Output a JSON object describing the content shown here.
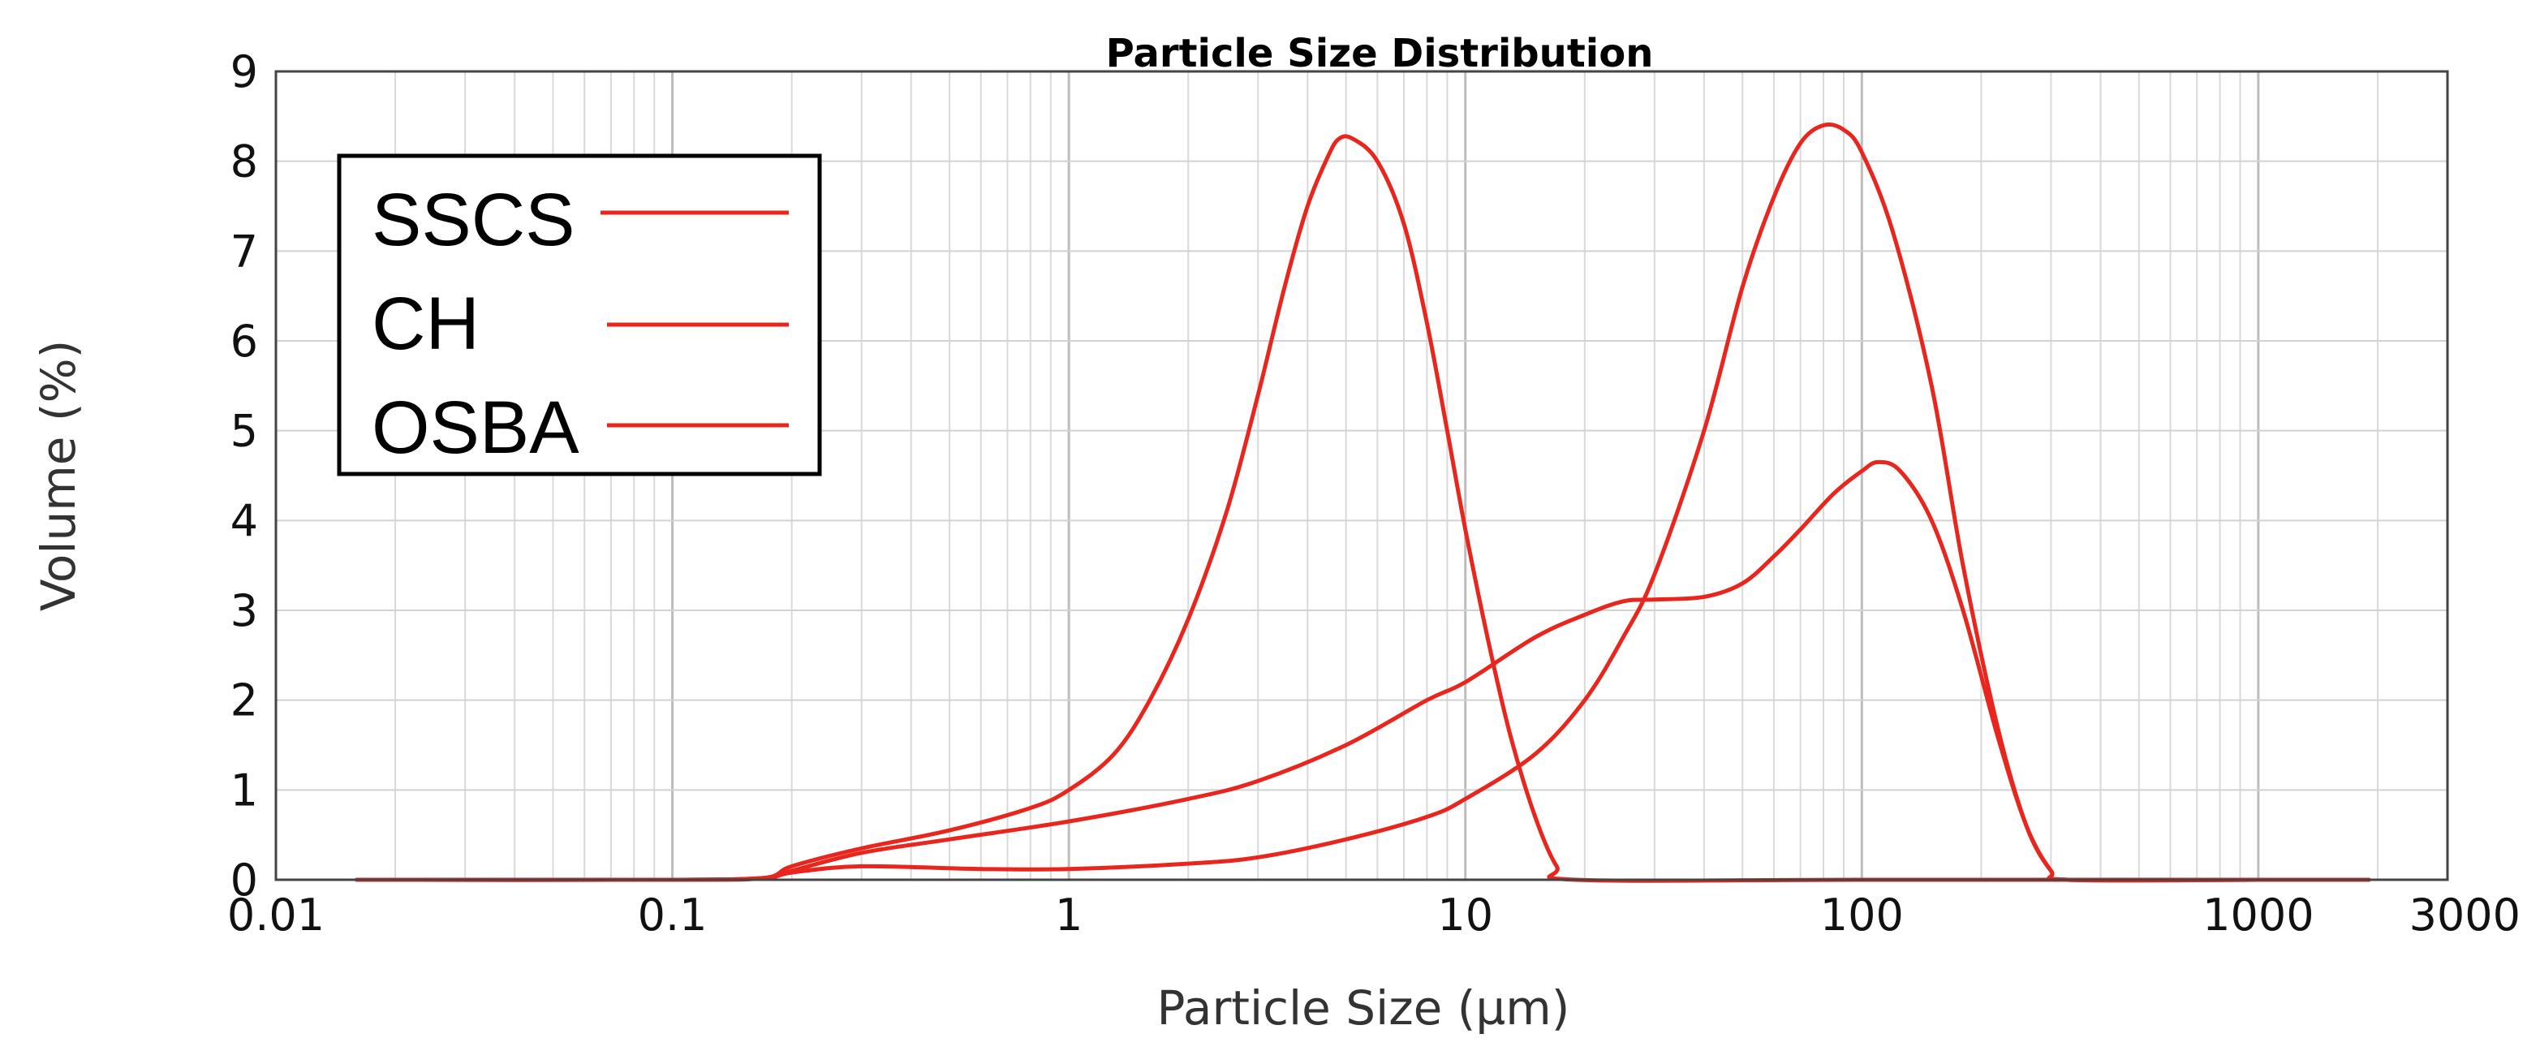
{
  "chart_data": {
    "type": "line",
    "title": "Particle Size Distribution",
    "xlabel": "Particle Size (µm)",
    "ylabel": "Volume (%)",
    "x_scale": "log",
    "xlim": [
      0.01,
      3000
    ],
    "ylim": [
      0,
      9
    ],
    "x_ticks": [
      "0.01",
      "0.1",
      "1",
      "10",
      "100",
      "1000",
      "3000"
    ],
    "y_ticks": [
      "0",
      "1",
      "2",
      "3",
      "4",
      "5",
      "6",
      "7",
      "8",
      "9"
    ],
    "grid": true,
    "legend_position": "top-left",
    "series_color": "#e8261e",
    "series": [
      {
        "name": "SSCS",
        "points": [
          [
            0.016,
            0
          ],
          [
            0.1,
            0
          ],
          [
            0.17,
            0.02
          ],
          [
            0.2,
            0.15
          ],
          [
            0.3,
            0.35
          ],
          [
            0.5,
            0.55
          ],
          [
            0.8,
            0.8
          ],
          [
            1,
            1.0
          ],
          [
            1.3,
            1.4
          ],
          [
            1.6,
            2.0
          ],
          [
            2,
            2.9
          ],
          [
            2.5,
            4.1
          ],
          [
            3,
            5.4
          ],
          [
            3.5,
            6.6
          ],
          [
            4,
            7.5
          ],
          [
            4.5,
            8.05
          ],
          [
            4.8,
            8.25
          ],
          [
            5.2,
            8.25
          ],
          [
            6,
            8.0
          ],
          [
            7,
            7.3
          ],
          [
            8,
            6.2
          ],
          [
            9,
            5.0
          ],
          [
            10,
            3.9
          ],
          [
            11.5,
            2.6
          ],
          [
            13,
            1.6
          ],
          [
            15,
            0.7
          ],
          [
            17,
            0.15
          ],
          [
            19,
            0
          ],
          [
            100,
            0
          ],
          [
            1000,
            0
          ],
          [
            1900,
            0
          ]
        ]
      },
      {
        "name": "CH",
        "points": [
          [
            0.016,
            0
          ],
          [
            0.1,
            0
          ],
          [
            0.17,
            0.02
          ],
          [
            0.2,
            0.08
          ],
          [
            0.3,
            0.15
          ],
          [
            0.6,
            0.12
          ],
          [
            1,
            0.12
          ],
          [
            2,
            0.18
          ],
          [
            3,
            0.25
          ],
          [
            5,
            0.45
          ],
          [
            8,
            0.7
          ],
          [
            10,
            0.9
          ],
          [
            15,
            1.4
          ],
          [
            20,
            2.0
          ],
          [
            25,
            2.7
          ],
          [
            30,
            3.4
          ],
          [
            40,
            5.0
          ],
          [
            50,
            6.6
          ],
          [
            60,
            7.6
          ],
          [
            70,
            8.2
          ],
          [
            80,
            8.4
          ],
          [
            90,
            8.35
          ],
          [
            100,
            8.1
          ],
          [
            120,
            7.2
          ],
          [
            150,
            5.5
          ],
          [
            180,
            3.5
          ],
          [
            220,
            1.7
          ],
          [
            260,
            0.6
          ],
          [
            300,
            0.1
          ],
          [
            330,
            0
          ],
          [
            1000,
            0
          ],
          [
            1900,
            0
          ]
        ]
      },
      {
        "name": "OSBA",
        "points": [
          [
            0.016,
            0
          ],
          [
            0.1,
            0
          ],
          [
            0.17,
            0.02
          ],
          [
            0.2,
            0.1
          ],
          [
            0.3,
            0.3
          ],
          [
            0.5,
            0.45
          ],
          [
            1,
            0.65
          ],
          [
            2,
            0.9
          ],
          [
            3,
            1.1
          ],
          [
            5,
            1.5
          ],
          [
            8,
            2.0
          ],
          [
            10,
            2.2
          ],
          [
            15,
            2.7
          ],
          [
            20,
            2.95
          ],
          [
            25,
            3.1
          ],
          [
            30,
            3.12
          ],
          [
            40,
            3.15
          ],
          [
            50,
            3.3
          ],
          [
            60,
            3.6
          ],
          [
            70,
            3.9
          ],
          [
            85,
            4.3
          ],
          [
            100,
            4.55
          ],
          [
            110,
            4.65
          ],
          [
            125,
            4.55
          ],
          [
            150,
            4.0
          ],
          [
            180,
            3.0
          ],
          [
            220,
            1.6
          ],
          [
            260,
            0.6
          ],
          [
            300,
            0.1
          ],
          [
            330,
            0
          ],
          [
            1000,
            0
          ],
          [
            1900,
            0
          ]
        ]
      }
    ]
  }
}
